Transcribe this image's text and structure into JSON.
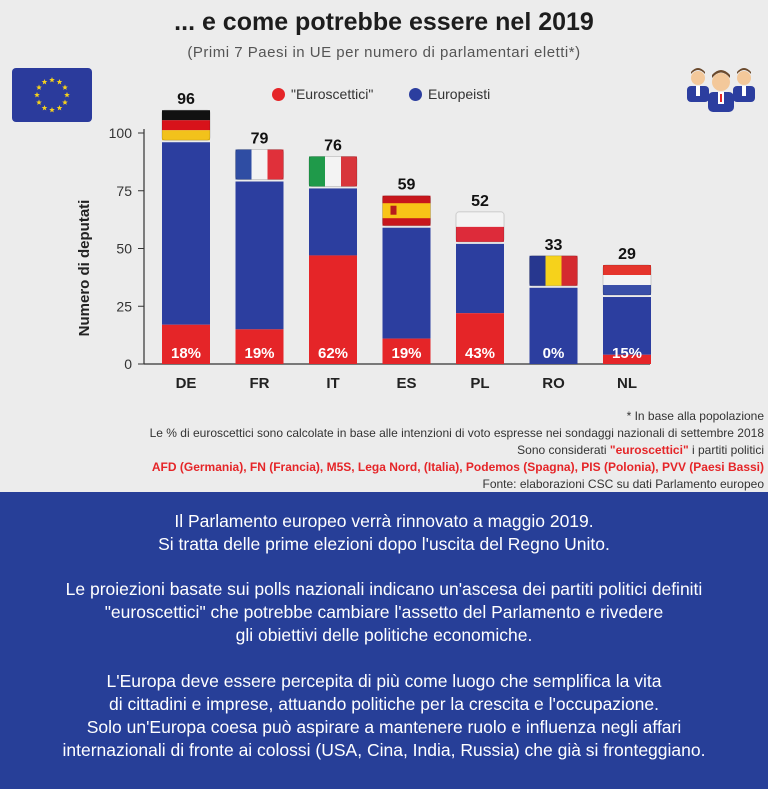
{
  "header": {
    "title": "... e come potrebbe essere nel 2019",
    "subtitle": "(Primi 7 Paesi in UE per numero di parlamentari eletti*)"
  },
  "icons": {
    "left": "eu-flag-icon",
    "right": "parliament-members-icon"
  },
  "legend": [
    {
      "label": "\"Euroscettici\"",
      "color": "#e52528"
    },
    {
      "label": "Europeisti",
      "color": "#2c3e9f"
    }
  ],
  "chart_data": {
    "type": "bar",
    "stacked": true,
    "categories": [
      "DE",
      "FR",
      "IT",
      "ES",
      "PL",
      "RO",
      "NL"
    ],
    "totals": [
      96,
      79,
      76,
      59,
      52,
      33,
      29
    ],
    "euroskeptic_pct_labels": [
      "18%",
      "19%",
      "62%",
      "19%",
      "43%",
      "0%",
      "15%"
    ],
    "series": [
      {
        "name": "\"Euroscettici\"",
        "color": "#e52528",
        "values": [
          17,
          15,
          47,
          11,
          22,
          0,
          4
        ]
      },
      {
        "name": "Europeisti",
        "color": "#2c3e9f",
        "values": [
          79,
          64,
          29,
          48,
          30,
          33,
          25
        ]
      }
    ],
    "ylabel": "Numero di deputati",
    "ylim": [
      0,
      100
    ],
    "yticks": [
      0,
      25,
      50,
      75,
      100
    ],
    "flags": [
      "germany-flag-icon",
      "france-flag-icon",
      "italy-flag-icon",
      "spain-flag-icon",
      "poland-flag-icon",
      "romania-flag-icon",
      "netherlands-flag-icon"
    ]
  },
  "notes": {
    "line1": "* In base alla popolazione",
    "line2": "Le % di euroscettici sono calcolate in base alle intenzioni di voto espresse nei sondaggi nazionali di settembre 2018",
    "line3_prefix": "Sono considerati ",
    "line3_highlight": "\"euroscettici\"",
    "line3_suffix": " i partiti politici",
    "line4": "AFD (Germania), FN (Francia), M5S, Lega Nord, (Italia), Podemos (Spagna), PIS (Polonia), PVV (Paesi Bassi)",
    "line5": "Fonte: elaborazioni CSC su dati Parlamento europeo"
  },
  "bottom": {
    "p1_l1": "Il Parlamento europeo verrà rinnovato a maggio 2019.",
    "p1_l2": "Si tratta delle prime elezioni dopo l'uscita del Regno Unito.",
    "p2_l1": "Le proiezioni basate sui polls nazionali indicano un'ascesa dei partiti politici definiti",
    "p2_l2": "\"euroscettici\" che potrebbe cambiare l'assetto del Parlamento e rivedere",
    "p2_l3": "gli obiettivi delle politiche economiche.",
    "p3_l1": "L'Europa deve essere percepita di più come luogo che semplifica la vita",
    "p3_l2": "di cittadini e imprese, attuando politiche per la crescita e l'occupazione.",
    "p3_l3": "Solo un'Europa coesa può aspirare a mantenere ruolo e influenza negli affari",
    "p3_l4": "internazionali di fronte ai colossi (USA, Cina, India, Russia) che già si fronteggiano."
  }
}
